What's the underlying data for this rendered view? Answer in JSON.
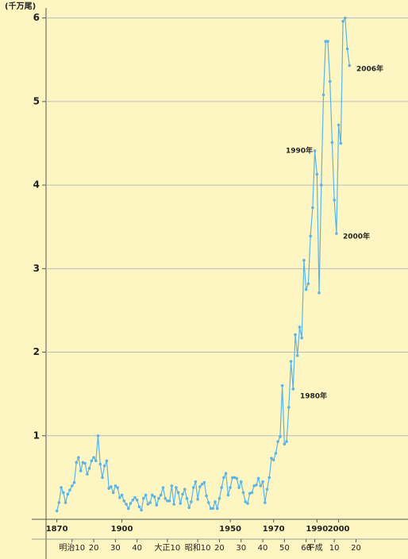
{
  "chart_data": {
    "type": "line",
    "unit_label": "(千万尾)",
    "x": [
      1870,
      1871,
      1872,
      1873,
      1874,
      1875,
      1876,
      1877,
      1878,
      1879,
      1880,
      1881,
      1882,
      1883,
      1884,
      1885,
      1886,
      1887,
      1888,
      1889,
      1890,
      1891,
      1892,
      1893,
      1894,
      1895,
      1896,
      1897,
      1898,
      1899,
      1900,
      1901,
      1902,
      1903,
      1904,
      1905,
      1906,
      1907,
      1908,
      1909,
      1910,
      1911,
      1912,
      1913,
      1914,
      1915,
      1916,
      1917,
      1918,
      1919,
      1920,
      1921,
      1922,
      1923,
      1924,
      1925,
      1926,
      1927,
      1928,
      1929,
      1930,
      1931,
      1932,
      1933,
      1934,
      1935,
      1936,
      1937,
      1938,
      1939,
      1940,
      1941,
      1942,
      1943,
      1944,
      1945,
      1946,
      1947,
      1948,
      1949,
      1950,
      1951,
      1952,
      1953,
      1954,
      1955,
      1956,
      1957,
      1958,
      1959,
      1960,
      1961,
      1962,
      1963,
      1964,
      1965,
      1966,
      1967,
      1968,
      1969,
      1970,
      1971,
      1972,
      1973,
      1974,
      1975,
      1976,
      1977,
      1978,
      1979,
      1980,
      1981,
      1982,
      1983,
      1984,
      1985,
      1986,
      1987,
      1988,
      1989,
      1990,
      1991,
      1992,
      1993,
      1994,
      1995,
      1996,
      1997,
      1998,
      1999,
      2000,
      2001,
      2002,
      2003,
      2004,
      2005
    ],
    "values": [
      0.1,
      0.2,
      0.38,
      0.32,
      0.2,
      0.3,
      0.35,
      0.4,
      0.44,
      0.68,
      0.74,
      0.58,
      0.68,
      0.67,
      0.54,
      0.61,
      0.7,
      0.74,
      0.7,
      1.0,
      0.66,
      0.5,
      0.64,
      0.7,
      0.37,
      0.39,
      0.32,
      0.4,
      0.38,
      0.26,
      0.29,
      0.22,
      0.18,
      0.13,
      0.19,
      0.23,
      0.26,
      0.23,
      0.15,
      0.11,
      0.25,
      0.29,
      0.18,
      0.2,
      0.29,
      0.27,
      0.17,
      0.25,
      0.29,
      0.38,
      0.25,
      0.22,
      0.22,
      0.4,
      0.18,
      0.38,
      0.32,
      0.19,
      0.3,
      0.36,
      0.25,
      0.14,
      0.21,
      0.38,
      0.45,
      0.24,
      0.39,
      0.42,
      0.44,
      0.28,
      0.2,
      0.13,
      0.13,
      0.21,
      0.13,
      0.25,
      0.38,
      0.5,
      0.55,
      0.29,
      0.38,
      0.5,
      0.5,
      0.49,
      0.38,
      0.45,
      0.32,
      0.21,
      0.19,
      0.31,
      0.32,
      0.4,
      0.41,
      0.49,
      0.4,
      0.45,
      0.2,
      0.36,
      0.5,
      0.73,
      0.71,
      0.79,
      0.93,
      0.99,
      1.6,
      0.9,
      0.93,
      1.34,
      1.89,
      1.56,
      2.21,
      1.96,
      2.3,
      2.17,
      3.1,
      2.75,
      2.82,
      3.39,
      3.73,
      4.41,
      4.13,
      2.71,
      4.0,
      5.08,
      5.72,
      5.72,
      5.24,
      4.51,
      3.82,
      3.42,
      4.72,
      4.5,
      5.96,
      6.0,
      5.63,
      5.43
    ],
    "color": "#5ab4e6",
    "xlim": [
      1865,
      2032
    ],
    "ylim": [
      0,
      6.12
    ],
    "yticks": [
      1,
      2,
      3,
      4,
      5,
      6
    ],
    "xticks": [
      1870,
      1900,
      1950,
      1970,
      1990,
      2000
    ],
    "era_ticks": [
      {
        "value": 1877,
        "label": "明治10"
      },
      {
        "value": 1887,
        "label": "20"
      },
      {
        "value": 1897,
        "label": "30"
      },
      {
        "value": 1907,
        "label": "40"
      },
      {
        "value": 1921,
        "label": "大正10"
      },
      {
        "value": 1935,
        "label": "昭和10"
      },
      {
        "value": 1945,
        "label": "20"
      },
      {
        "value": 1955,
        "label": "30"
      },
      {
        "value": 1965,
        "label": "40"
      },
      {
        "value": 1975,
        "label": "50"
      },
      {
        "value": 1985,
        "label": "60"
      },
      {
        "value": 1989,
        "label": "平成"
      },
      {
        "value": 1998,
        "label": "10"
      },
      {
        "value": 2008,
        "label": "20"
      }
    ],
    "annotations": [
      "2006年",
      "1990年",
      "2000年",
      "1980年"
    ],
    "grid": true
  }
}
